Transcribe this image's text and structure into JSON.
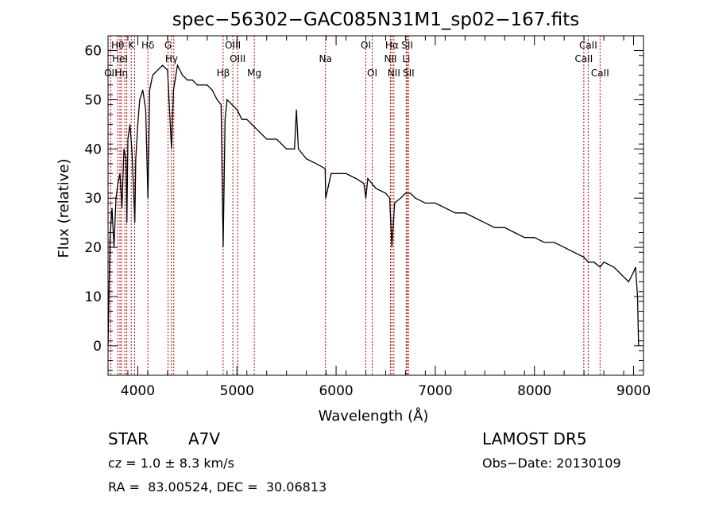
{
  "chart_data": {
    "type": "line",
    "title": "spec−56302−GAC085N31M1_sp02−167.fits",
    "xlabel": "Wavelength (Å)",
    "ylabel": "Flux (relative)",
    "xlim": [
      3700,
      9100
    ],
    "ylim": [
      -6,
      63
    ],
    "xticks": [
      4000,
      5000,
      6000,
      7000,
      8000,
      9000
    ],
    "yticks": [
      0,
      10,
      20,
      30,
      40,
      50,
      60
    ],
    "grid": false,
    "legend": "none",
    "series": [
      {
        "x": [
          3700,
          3720,
          3740,
          3760,
          3780,
          3800,
          3820,
          3840,
          3860,
          3880,
          3890,
          3900,
          3920,
          3940,
          3960,
          3970,
          3980,
          4000,
          4020,
          4050,
          4080,
          4102,
          4120,
          4150,
          4200,
          4250,
          4300,
          4340,
          4360,
          4400,
          4450,
          4500,
          4550,
          4600,
          4650,
          4700,
          4750,
          4800,
          4840,
          4861,
          4880,
          4900,
          4950,
          5000,
          5050,
          5100,
          5150,
          5200,
          5300,
          5400,
          5500,
          5580,
          5600,
          5620,
          5700,
          5800,
          5890,
          5895,
          5950,
          6000,
          6100,
          6200,
          6280,
          6300,
          6320,
          6400,
          6500,
          6540,
          6563,
          6590,
          6650,
          6700,
          6750,
          6800,
          6900,
          7000,
          7100,
          7200,
          7300,
          7400,
          7500,
          7600,
          7700,
          7800,
          7900,
          8000,
          8100,
          8200,
          8300,
          8400,
          8500,
          8542,
          8600,
          8662,
          8700,
          8800,
          8850,
          8900,
          8950,
          9000,
          9020,
          9040,
          9050
        ],
        "y": [
          0,
          22,
          28,
          20,
          30,
          33,
          35,
          28,
          40,
          38,
          25,
          42,
          45,
          40,
          30,
          25,
          38,
          45,
          50,
          52,
          48,
          30,
          52,
          55,
          56,
          57,
          56,
          40,
          52,
          57,
          55,
          54,
          54,
          53,
          53,
          53,
          52,
          50,
          49,
          20,
          46,
          50,
          49,
          48,
          46,
          46,
          45,
          44,
          42,
          42,
          40,
          40,
          48,
          40,
          38,
          37,
          36,
          30,
          35,
          35,
          35,
          34,
          33,
          30,
          34,
          32,
          31,
          30,
          20,
          29,
          30,
          31,
          31,
          30,
          29,
          29,
          28,
          27,
          27,
          26,
          25,
          24,
          24,
          23,
          22,
          22,
          21,
          21,
          20,
          19,
          18,
          17,
          17,
          16,
          17,
          16,
          15,
          14,
          13,
          15,
          16,
          10,
          0
        ]
      }
    ],
    "line_marks": [
      {
        "x": 3727,
        "label": "OII",
        "row": 3
      },
      {
        "x": 3798,
        "label": "Hθ",
        "row": 1
      },
      {
        "x": 3820,
        "label": "HeI",
        "row": 2
      },
      {
        "x": 3835,
        "label": "Hη",
        "row": 3
      },
      {
        "x": 3869,
        "label": "",
        "row": 0
      },
      {
        "x": 3889,
        "label": "",
        "row": 0
      },
      {
        "x": 3934,
        "label": "K",
        "row": 1
      },
      {
        "x": 3968,
        "label": "",
        "row": 0
      },
      {
        "x": 4102,
        "label": "Hδ",
        "row": 1
      },
      {
        "x": 4305,
        "label": "G",
        "row": 1
      },
      {
        "x": 4340,
        "label": "Hγ",
        "row": 2
      },
      {
        "x": 4363,
        "label": "",
        "row": 0
      },
      {
        "x": 4861,
        "label": "Hβ",
        "row": 3
      },
      {
        "x": 4959,
        "label": "OIII",
        "row": 1
      },
      {
        "x": 5007,
        "label": "OIII",
        "row": 2
      },
      {
        "x": 5175,
        "label": "Mg",
        "row": 3
      },
      {
        "x": 5893,
        "label": "Na",
        "row": 2
      },
      {
        "x": 6300,
        "label": "OI",
        "row": 1
      },
      {
        "x": 6364,
        "label": "OI",
        "row": 3
      },
      {
        "x": 6548,
        "label": "NII",
        "row": 2
      },
      {
        "x": 6563,
        "label": "Hα",
        "row": 1
      },
      {
        "x": 6583,
        "label": "NII",
        "row": 3
      },
      {
        "x": 6707,
        "label": "Li",
        "row": 2
      },
      {
        "x": 6717,
        "label": "SII",
        "row": 1
      },
      {
        "x": 6731,
        "label": "SII",
        "row": 3
      },
      {
        "x": 8498,
        "label": "CaII",
        "row": 2
      },
      {
        "x": 8542,
        "label": "CaII",
        "row": 1
      },
      {
        "x": 8662,
        "label": "CaII",
        "row": 3
      }
    ]
  },
  "info": {
    "object_type": "STAR",
    "subclass": "A7V",
    "survey": "LAMOST DR5",
    "cz": "cz = 1.0 ± 8.3 km/s",
    "obs_date": "Obs−Date: 20130109",
    "coords": "RA =  83.00524, DEC =  30.06813"
  },
  "colors": {
    "line_mark": "#c00000",
    "spectrum": "#000000",
    "axes": "#000000",
    "background": "#ffffff"
  }
}
